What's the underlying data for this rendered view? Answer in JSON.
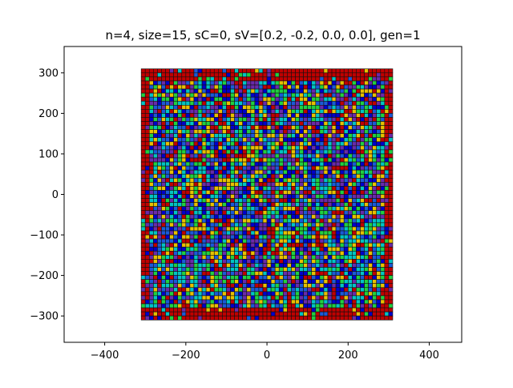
{
  "chart_data": {
    "type": "heatmap",
    "title": "n=4, size=15, sC=0, sV=[0.2, -0.2, 0.0, 0.0], gen=1",
    "xlabel": "",
    "ylabel": "",
    "xlim": [
      -500,
      480
    ],
    "ylim": [
      -365,
      365
    ],
    "x_ticks": [
      -400,
      -200,
      0,
      200,
      400
    ],
    "y_ticks": [
      -300,
      -200,
      -100,
      0,
      100,
      200,
      300
    ],
    "x_tick_labels": [
      "−400",
      "−200",
      "0",
      "200",
      "400"
    ],
    "y_tick_labels": [
      "−300",
      "−200",
      "−100",
      "0",
      "100",
      "200",
      "300"
    ],
    "grid": false,
    "cell_size": 10,
    "n_species": 4,
    "extent": [
      -310,
      310,
      -310,
      310
    ],
    "border_rows": 3,
    "border_color": "#c00000",
    "palette": [
      "#0000cc",
      "#00c4c4",
      "#20d040",
      "#e8c000",
      "#c00000",
      "#6a2aaa",
      "#1a5ad8"
    ],
    "random_seed_visual": 12345
  }
}
